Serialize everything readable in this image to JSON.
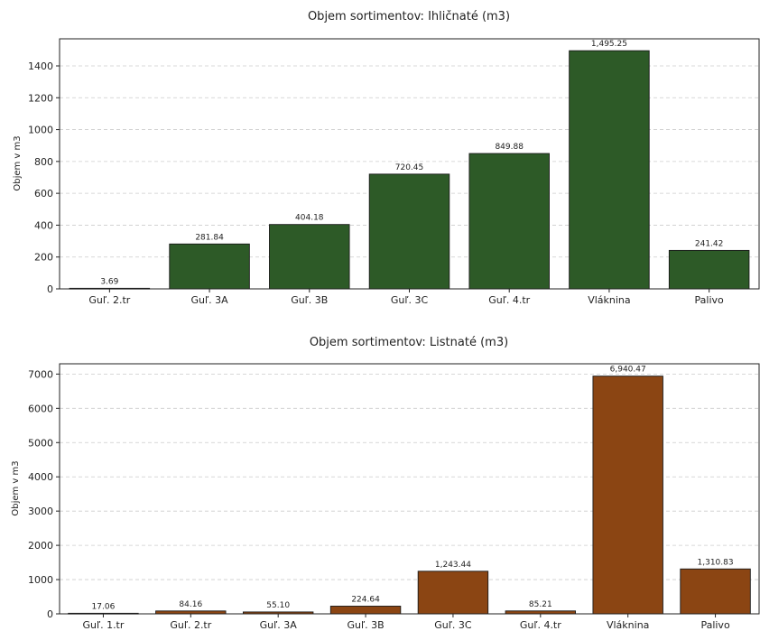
{
  "chart_data": [
    {
      "type": "bar",
      "title": "Objem sortimentov: Ihličnaté (m3)",
      "xlabel": "",
      "ylabel": "Objem v m3",
      "categories": [
        "Guľ. 2.tr",
        "Guľ. 3A",
        "Guľ. 3B",
        "Guľ. 3C",
        "Guľ. 4.tr",
        "Vláknina",
        "Palivo"
      ],
      "values": [
        3.69,
        281.84,
        404.18,
        720.45,
        849.88,
        1495.25,
        241.42
      ],
      "data_labels": [
        "3.69",
        "281.84",
        "404.18",
        "720.45",
        "849.88",
        "1,495.25",
        "241.42"
      ],
      "yticks": [
        0,
        200,
        400,
        600,
        800,
        1000,
        1200,
        1400
      ],
      "ylim": [
        0,
        1570
      ],
      "grid": true,
      "color": "#2d5a27"
    },
    {
      "type": "bar",
      "title": "Objem sortimentov: Listnaté (m3)",
      "xlabel": "",
      "ylabel": "Objem v m3",
      "categories": [
        "Guľ. 1.tr",
        "Guľ. 2.tr",
        "Guľ. 3A",
        "Guľ. 3B",
        "Guľ. 3C",
        "Guľ. 4.tr",
        "Vláknina",
        "Palivo"
      ],
      "values": [
        17.06,
        84.16,
        55.1,
        224.64,
        1243.44,
        85.21,
        6940.47,
        1310.83
      ],
      "data_labels": [
        "17.06",
        "84.16",
        "55.10",
        "224.64",
        "1,243.44",
        "85.21",
        "6,940.47",
        "1,310.83"
      ],
      "yticks": [
        0,
        1000,
        2000,
        3000,
        4000,
        5000,
        6000,
        7000
      ],
      "ylim": [
        0,
        7300
      ],
      "grid": true,
      "color": "#8b4513"
    }
  ]
}
